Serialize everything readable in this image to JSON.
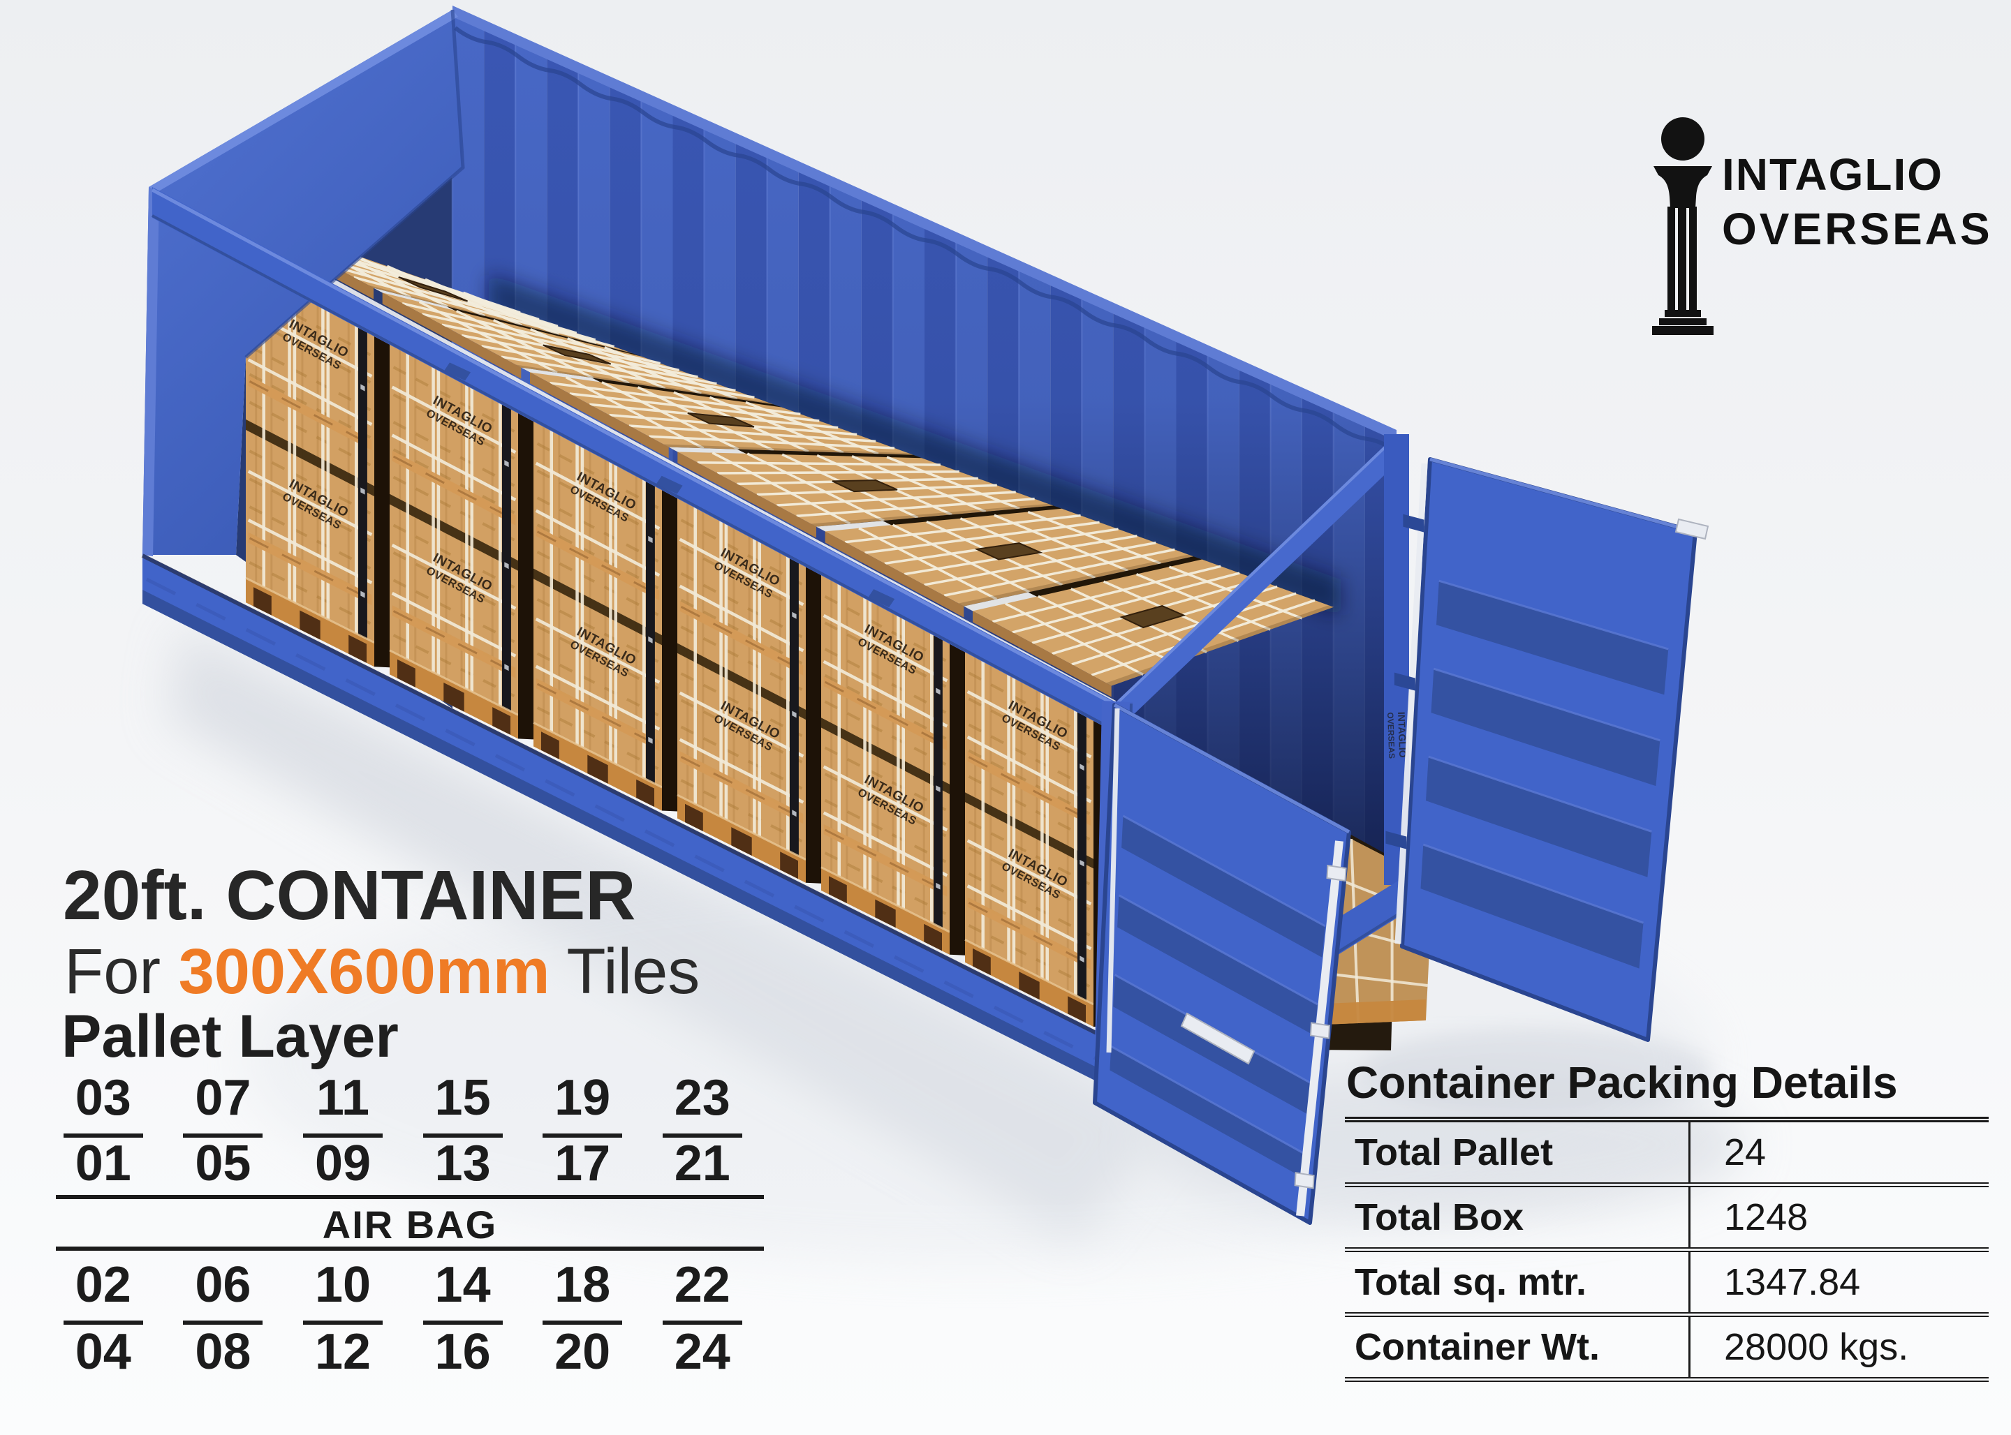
{
  "logo": {
    "icon": "pillar-icon",
    "line1": "INTAGLIO",
    "line2": "OVERSEAS"
  },
  "title": {
    "line1": "20ft. CONTAINER",
    "for_prefix": "For ",
    "tile_size": "300X600mm",
    "suffix": " Tiles",
    "accent_color": "#ef7b25"
  },
  "pallet_layer": {
    "heading": "Pallet Layer",
    "top_rows": [
      [
        "03",
        "07",
        "11",
        "15",
        "19",
        "23"
      ],
      [
        "01",
        "05",
        "09",
        "13",
        "17",
        "21"
      ]
    ],
    "separator_label": "AIR BAG",
    "bottom_rows": [
      [
        "02",
        "06",
        "10",
        "14",
        "18",
        "22"
      ],
      [
        "04",
        "08",
        "12",
        "16",
        "20",
        "24"
      ]
    ]
  },
  "packing_details": {
    "title": "Container Packing Details",
    "rows": [
      {
        "label": "Total Pallet",
        "value": "24"
      },
      {
        "label": "Total Box",
        "value": "1248"
      },
      {
        "label": "Total sq. mtr.",
        "value": "1347.84"
      },
      {
        "label": "Container Wt.",
        "value": "28000 kgs."
      }
    ]
  },
  "container_render": {
    "description": "blue 20ft open-top container loaded with strapped wooden tile pallets, right-end doors open",
    "crate_brand_line1": "INTAGLIO",
    "crate_brand_line2": "OVERSEAS",
    "palette": {
      "blue": "#4164c9",
      "blueLight": "#5f7cd4",
      "blueLighter": "#6d8ade",
      "blueDark": "#33509e",
      "blueDeep": "#2a4590",
      "navyInterior": "#20356f",
      "corrA": "#4868c6",
      "corrB": "#3a57b4",
      "corrHi": "#5b79d4",
      "woodTop": "#d3a468",
      "woodFace": "#d2a063",
      "woodDark": "#a87944",
      "woodGrain": "#b9864a",
      "slatDash": "#a5742f",
      "strap": "#f2ead8",
      "gridLine": "#f4eedd",
      "battenOrange": "#d49a57",
      "palletOrange": "#c6873f",
      "holeDark": "#59401f",
      "blackStrip": "#18181d",
      "gapShadow": "#1d1207",
      "airbagWhite": "#eceef1",
      "rodWhite": "#e9ecf2",
      "shadow": "#ccd1da"
    }
  }
}
